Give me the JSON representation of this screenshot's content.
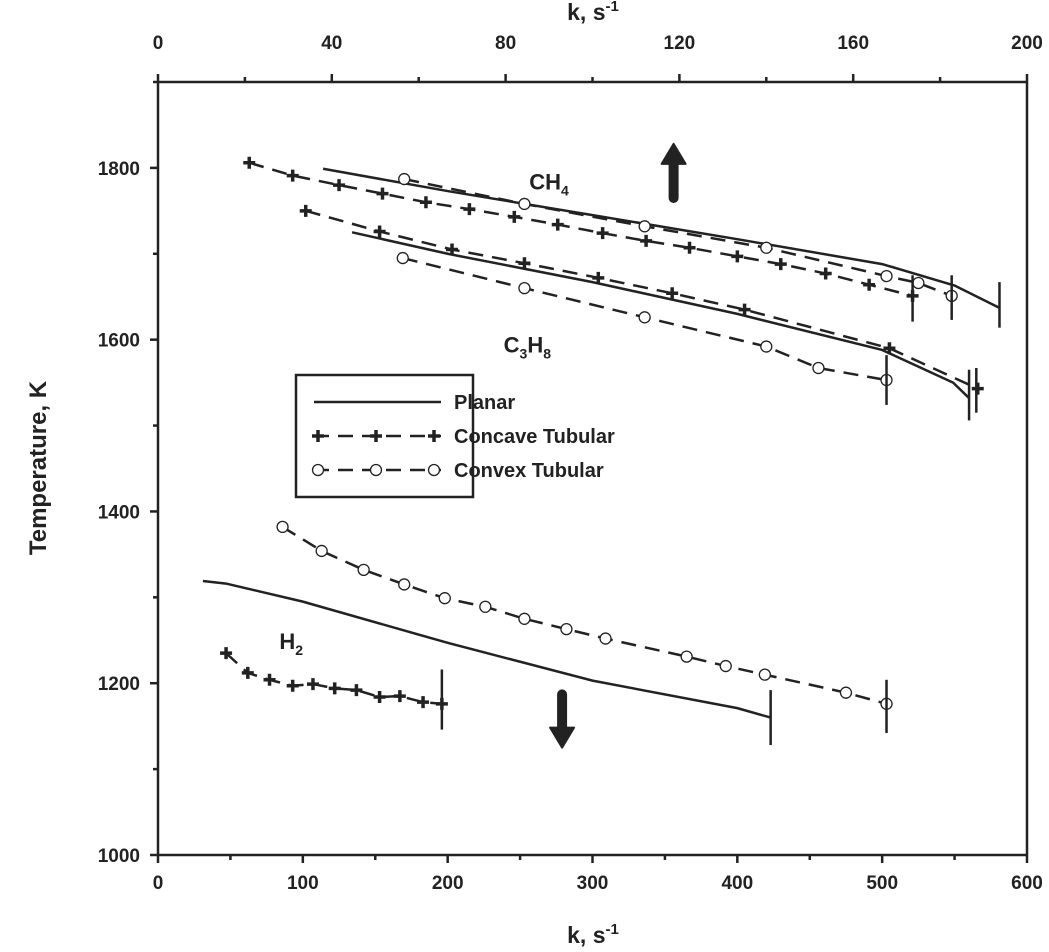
{
  "chart_data": {
    "type": "line",
    "xlabel_bottom": "k, s",
    "xlabel_top": "k, s",
    "xlabel_exponent": "-1",
    "ylabel": "Temperature, K",
    "xlim": [
      0,
      600
    ],
    "xlim_top": [
      0,
      200
    ],
    "ylim": [
      1000,
      1900
    ],
    "xticks": [
      "0",
      "100",
      "200",
      "300",
      "400",
      "500",
      "600"
    ],
    "xticks_top": [
      "0",
      "40",
      "80",
      "120",
      "160",
      "200"
    ],
    "yticks": [
      "1000",
      "1200",
      "1400",
      "1600",
      "1800"
    ],
    "grid": false,
    "legend": {
      "placement": "center-left",
      "entries": [
        {
          "label": "Planar",
          "style": "solid",
          "marker": "none"
        },
        {
          "label": "Concave Tubular",
          "style": "dashed",
          "marker": "plus"
        },
        {
          "label": "Convex Tubular",
          "style": "dashed",
          "marker": "circle"
        }
      ]
    },
    "annotations": [
      {
        "text": "CH",
        "sub": "4",
        "x": 270,
        "y": 1775
      },
      {
        "text": "C",
        "sub": "3",
        "text2": "H",
        "sub2": "8",
        "x": 255,
        "y": 1585
      },
      {
        "text": "H",
        "sub": "2",
        "x": 92,
        "y": 1240
      }
    ],
    "arrows": [
      {
        "direction": "up",
        "x": 356,
        "y_from": 1765,
        "y_to": 1828
      },
      {
        "direction": "down",
        "x": 279,
        "y_from": 1187,
        "y_to": 1125
      }
    ],
    "series": [
      {
        "name": "CH4 Planar",
        "style": "solid",
        "marker": "none",
        "x": [
          114,
          200,
          300,
          400,
          500,
          550,
          581
        ],
        "y": [
          1799,
          1773,
          1745,
          1717,
          1688,
          1663,
          1637
        ]
      },
      {
        "name": "CH4 Concave Tubular",
        "style": "dashed",
        "marker": "plus",
        "x": [
          63,
          93,
          125,
          155,
          185,
          215,
          246,
          276,
          307,
          337,
          367,
          400,
          430,
          461,
          491,
          521
        ],
        "y": [
          1806,
          1791,
          1780,
          1770,
          1760,
          1752,
          1743,
          1734,
          1724,
          1715,
          1707,
          1697,
          1688,
          1677,
          1664,
          1651
        ]
      },
      {
        "name": "CH4 Convex Tubular",
        "style": "dashed",
        "marker": "circle",
        "x": [
          170,
          253,
          336,
          420,
          503,
          525,
          548
        ],
        "y": [
          1787,
          1758,
          1732,
          1707,
          1674,
          1666,
          1651
        ]
      },
      {
        "name": "C3H8 Planar",
        "style": "solid",
        "marker": "none",
        "x": [
          134,
          200,
          300,
          400,
          500,
          549,
          560
        ],
        "y": [
          1725,
          1700,
          1667,
          1630,
          1588,
          1550,
          1532
        ]
      },
      {
        "name": "C3H8 Concave Tubular",
        "style": "dashed",
        "marker": "plus",
        "x": [
          102,
          153,
          203,
          253,
          304,
          355,
          405,
          505,
          566
        ],
        "y": [
          1750,
          1726,
          1705,
          1689,
          1672,
          1654,
          1635,
          1590,
          1543
        ]
      },
      {
        "name": "C3H8 Convex Tubular",
        "style": "dashed",
        "marker": "circle",
        "x": [
          169,
          253,
          336,
          420,
          456,
          503
        ],
        "y": [
          1695,
          1660,
          1626,
          1592,
          1567,
          1553
        ]
      },
      {
        "name": "H2 Planar",
        "style": "solid",
        "marker": "none",
        "x": [
          31,
          47,
          100,
          200,
          300,
          400,
          423
        ],
        "y": [
          1319,
          1316,
          1295,
          1247,
          1203,
          1171,
          1160
        ]
      },
      {
        "name": "H2 Concave Tubular",
        "style": "dashed",
        "marker": "plus",
        "x": [
          47,
          62,
          77,
          93,
          107,
          122,
          137,
          153,
          167,
          183,
          196
        ],
        "y": [
          1235,
          1212,
          1204,
          1197,
          1199,
          1194,
          1192,
          1184,
          1185,
          1178,
          1176
        ]
      },
      {
        "name": "H2 Convex Tubular",
        "style": "dashed",
        "marker": "circle",
        "x": [
          86,
          113,
          142,
          170,
          198,
          226,
          253,
          282,
          309,
          365,
          392,
          419,
          475,
          503
        ],
        "y": [
          1382,
          1354,
          1332,
          1315,
          1299,
          1289,
          1275,
          1263,
          1252,
          1231,
          1220,
          1210,
          1189,
          1176
        ]
      }
    ],
    "error_bars": [
      {
        "x": 196,
        "low": 1146,
        "high": 1216
      },
      {
        "x": 423,
        "low": 1128,
        "high": 1192
      },
      {
        "x": 503,
        "low": 1142,
        "high": 1204
      },
      {
        "x": 503,
        "low": 1524,
        "high": 1582
      },
      {
        "x": 521,
        "low": 1621,
        "high": 1675
      },
      {
        "x": 548,
        "low": 1623,
        "high": 1675
      },
      {
        "x": 581,
        "low": 1614,
        "high": 1667
      },
      {
        "x": 560,
        "low": 1506,
        "high": 1565
      },
      {
        "x": 565,
        "low": 1515,
        "high": 1567
      }
    ]
  }
}
